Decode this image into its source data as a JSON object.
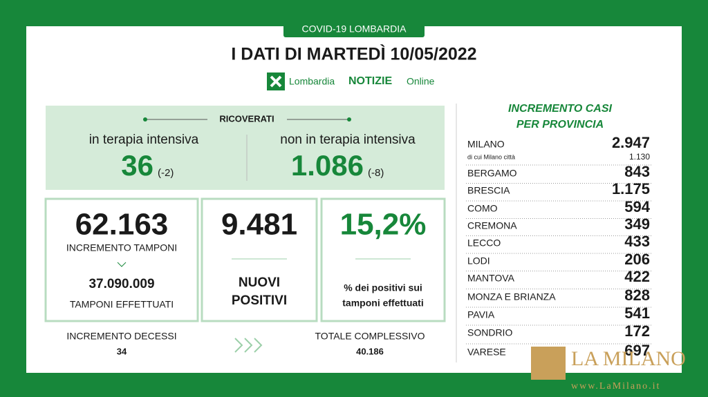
{
  "header": {
    "tag": "COVID-19 LOMBARDIA",
    "title": "I DATI DI MARTEDÌ 10/05/2022",
    "logo": {
      "brand": "Lombardia",
      "notizie": "NOTIZIE",
      "online": "Online"
    }
  },
  "ricoverati": {
    "title": "RICOVERATI",
    "intensiva": {
      "label": "in terapia intensiva",
      "value": "36",
      "delta": "(-2)"
    },
    "non_intensiva": {
      "label": "non in terapia intensiva",
      "value": "1.086",
      "delta": "(-8)"
    }
  },
  "tamponi": {
    "value": "62.163",
    "label": "INCREMENTO TAMPONI",
    "total": "37.090.009",
    "total_label": "TAMPONI EFFETTUATI"
  },
  "positivi": {
    "value": "9.481",
    "label_1": "NUOVI",
    "label_2": "POSITIVI"
  },
  "tasso": {
    "value": "15,2%",
    "label_1": "% dei positivi sui",
    "label_2": "tamponi effettuati"
  },
  "decessi": {
    "label": "INCREMENTO DECESSI",
    "value": "34",
    "total_label": "TOTALE COMPLESSIVO",
    "total": "40.186"
  },
  "province": {
    "title_1": "INCREMENTO CASI",
    "title_2": "PER PROVINCIA",
    "milano_citta": {
      "label": "di cui Milano città",
      "value": "1.130"
    },
    "rows": [
      [
        "MILANO",
        "2.947"
      ],
      [
        "BERGAMO",
        "843"
      ],
      [
        "BRESCIA",
        "1.175"
      ],
      [
        "COMO",
        "594"
      ],
      [
        "CREMONA",
        "349"
      ],
      [
        "LECCO",
        "433"
      ],
      [
        "LODI",
        "206"
      ],
      [
        "MANTOVA",
        "422"
      ],
      [
        "MONZA E BRIANZA",
        "828"
      ],
      [
        "PAVIA",
        "541"
      ],
      [
        "SONDRIO",
        "172"
      ],
      [
        "VARESE",
        "697"
      ]
    ]
  },
  "watermark": {
    "name": "LA MILANO",
    "url": "www.LaMilano.it"
  }
}
